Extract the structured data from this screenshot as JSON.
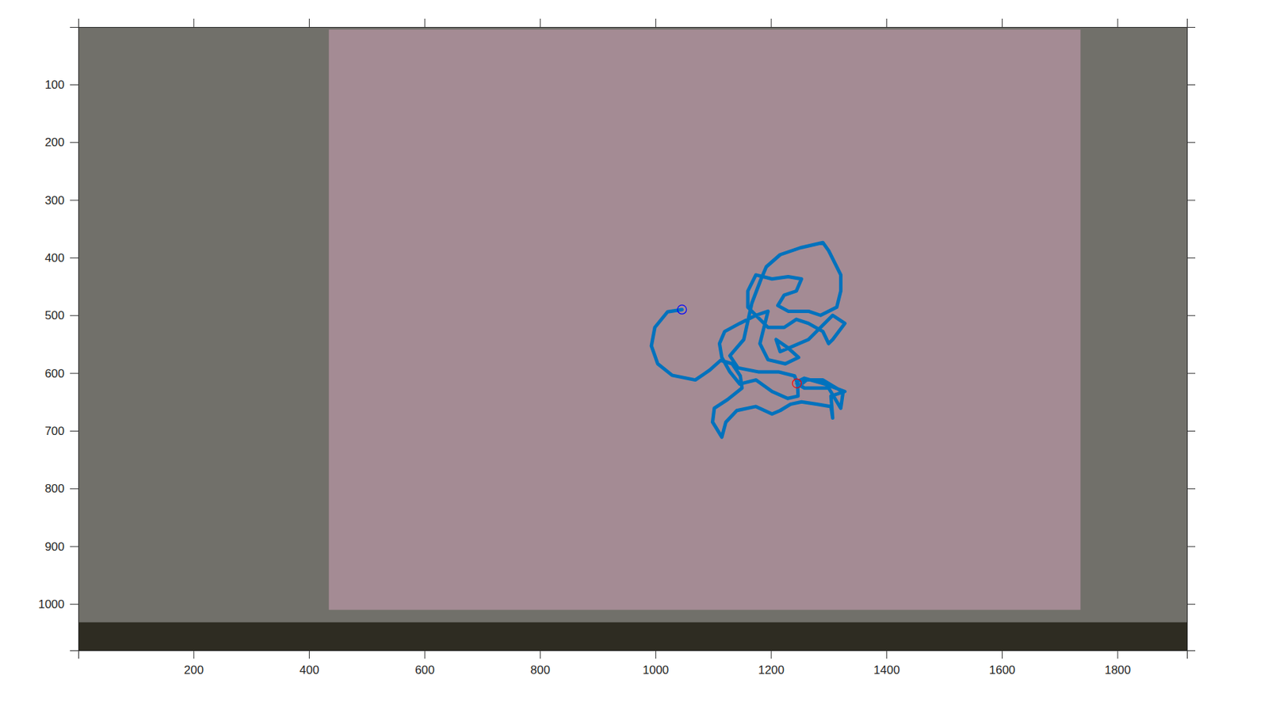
{
  "chart_data": {
    "type": "line",
    "xlim": [
      0.5,
      1920.5
    ],
    "ylim": [
      1080.5,
      0.5
    ],
    "xticks": [
      200,
      400,
      600,
      800,
      1000,
      1200,
      1400,
      1600,
      1800
    ],
    "yticks": [
      100,
      200,
      300,
      400,
      500,
      600,
      700,
      800,
      900,
      1000
    ],
    "grid": false,
    "series": [
      {
        "type": "line",
        "color": "#0072bd",
        "line_style": "solid",
        "x": [
          1046,
          1021,
          999,
          993,
          1004,
          1029,
          1069,
          1094,
          1113,
          1133,
          1147,
          1150,
          1125,
          1102,
          1099,
          1115,
          1122,
          1141,
          1174,
          1202,
          1216,
          1234,
          1253,
          1279,
          1304,
          1307,
          1304,
          1328,
          1293,
          1258,
          1246,
          1247,
          1229,
          1202,
          1174,
          1146,
          1129,
          1115,
          1111,
          1120,
          1146,
          1174,
          1195,
          1188,
          1181,
          1195,
          1225,
          1248,
          1229,
          1209,
          1216,
          1265,
          1286,
          1307,
          1328,
          1307,
          1300,
          1290,
          1265,
          1244,
          1223,
          1195,
          1174,
          1160,
          1160,
          1174,
          1202,
          1230,
          1253,
          1244,
          1223,
          1212,
          1230,
          1265,
          1286,
          1314,
          1321,
          1321,
          1300,
          1290,
          1251,
          1216,
          1192,
          1183,
          1167,
          1153,
          1129,
          1143,
          1178,
          1213,
          1241,
          1248,
          1262,
          1290,
          1325,
          1321,
          1300,
          1258,
          1245
        ],
        "values": [
          490,
          494,
          521,
          553,
          584,
          604,
          612,
          595,
          578,
          584,
          605,
          626,
          646,
          661,
          685,
          711,
          685,
          665,
          658,
          671,
          665,
          654,
          650,
          654,
          658,
          678,
          640,
          632,
          619,
          609,
          615,
          640,
          644,
          632,
          612,
          619,
          598,
          573,
          549,
          528,
          514,
          500,
          493,
          521,
          549,
          577,
          584,
          573,
          556,
          542,
          563,
          542,
          521,
          500,
          514,
          542,
          549,
          528,
          514,
          507,
          521,
          521,
          500,
          486,
          458,
          430,
          437,
          433,
          437,
          458,
          465,
          483,
          493,
          493,
          500,
          486,
          458,
          430,
          388,
          374,
          383,
          395,
          416,
          437,
          479,
          542,
          570,
          591,
          598,
          598,
          605,
          623,
          612,
          612,
          633,
          661,
          626,
          626,
          618
        ]
      },
      {
        "type": "scatter",
        "marker": "circle",
        "color": "#0000ff",
        "x": [
          1046
        ],
        "values": [
          490
        ]
      },
      {
        "type": "scatter",
        "marker": "circle",
        "color": "#ff0000",
        "x": [
          1245
        ],
        "values": [
          618
        ]
      }
    ]
  }
}
